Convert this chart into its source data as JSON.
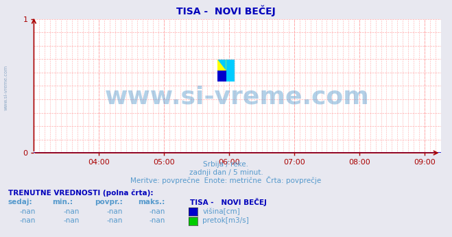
{
  "title": "TISA -  NOVI BEČEJ",
  "title_color": "#0000bb",
  "bg_color": "#e8e8f0",
  "plot_bg_color": "#ffffff",
  "grid_color_minor": "#ffaaaa",
  "x_min": 3.0,
  "x_max": 9.25,
  "x_ticks": [
    4,
    5,
    6,
    7,
    8,
    9
  ],
  "x_tick_labels": [
    "04:00",
    "05:00",
    "06:00",
    "07:00",
    "08:00",
    "09:00"
  ],
  "y_min": 0,
  "y_max": 1,
  "y_ticks": [
    0,
    1
  ],
  "axis_color": "#aa0000",
  "watermark_text": "www.si-vreme.com",
  "watermark_color": "#5599cc",
  "watermark_alpha": 0.45,
  "left_text": "www.si-vreme.com",
  "left_text_color": "#7799bb",
  "subtitle_line1": "Srbija / reke.",
  "subtitle_line2": "zadnji dan / 5 minut.",
  "subtitle_line3": "Meritve: povprečne  Enote: metrične  Črta: povprečje",
  "subtitle_color": "#5599cc",
  "table_header": "TRENUTNE VREDNOSTI (polna črta):",
  "table_header_color": "#0000bb",
  "col_headers": [
    "sedaj:",
    "min.:",
    "povpr.:",
    "maks.:"
  ],
  "col_header_color": "#5599cc",
  "station_name": "TISA -   NOVI BEČEJ",
  "station_name_color": "#0000bb",
  "row1_values": [
    "-nan",
    "-nan",
    "-nan",
    "-nan"
  ],
  "row2_values": [
    "-nan",
    "-nan",
    "-nan",
    "-nan"
  ],
  "legend_color1": "#0000cc",
  "legend_label1": "višina[cm]",
  "legend_color2": "#00cc00",
  "legend_label2": "pretok[m3/s]",
  "value_color": "#5599cc",
  "font_size_title": 10,
  "font_size_axis": 8,
  "font_size_watermark": 26,
  "bottom_line_color": "#0000cc",
  "x_arrow_color": "#aa0000",
  "y_arrow_color": "#aa0000",
  "logo_yellow": "#ffff00",
  "logo_cyan": "#00ccff",
  "logo_blue": "#0000cc"
}
